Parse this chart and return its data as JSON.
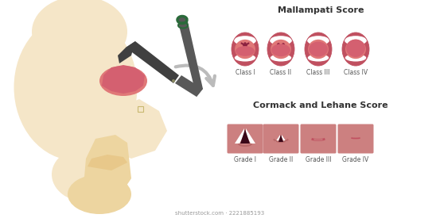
{
  "title_mallampati": "Mallampati Score",
  "title_cormack": "Cormack and Lehane Score",
  "mallampati_labels": [
    "Class I",
    "Class II",
    "Class III",
    "Class IV"
  ],
  "cormack_labels": [
    "Grade I",
    "Grade II",
    "Grade III",
    "Grade IV"
  ],
  "bg_color": "#ffffff",
  "skin_light": "#F5E6C8",
  "skin_mid": "#EDD5A0",
  "skin_crease": "#E8C88A",
  "mouth_open_bg": "#E07878",
  "mouth_dark": "#C05060",
  "tongue_color": "#D46070",
  "uvula_dark": "#8B2040",
  "teeth_color": "#ffffff",
  "larynx_bg": "#D07070",
  "larynx_dark": "#3A0818",
  "tool_gray": "#585858",
  "tool_dark": "#404040",
  "tool_green": "#2A6A3A",
  "label_color": "#555555",
  "cormack_box": "#CC8080",
  "cormack_inner": "#B86868",
  "arrow_color": "#BBBBBB",
  "small_sq_color": "#C8B870",
  "watermark": "shutterstock.com · 2221885193"
}
